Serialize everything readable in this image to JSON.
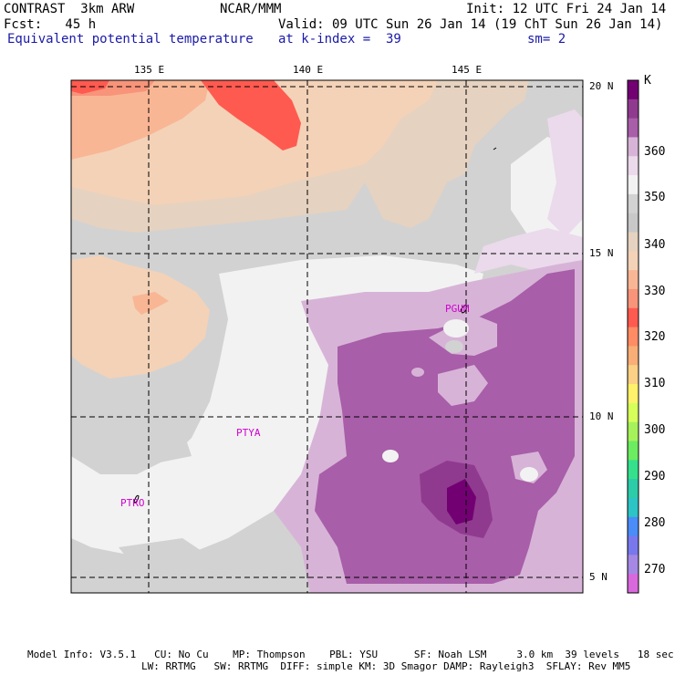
{
  "header": {
    "left_line1": "CONTRAST  3km ARW",
    "left_line2": "Fcst:   45 h",
    "field_title": "Equivalent potential temperature",
    "center_line1": "NCAR/MMM",
    "init": "Init: 12 UTC Fri 24 Jan 14",
    "valid": "Valid: 09 UTC Sun 26 Jan 14 (19 ChT Sun 26 Jan 14)",
    "level": "at k-index =  39",
    "smoothing": "sm= 2"
  },
  "axes": {
    "lon_labels": [
      "135 E",
      "140 E",
      "145 E"
    ],
    "lat_labels": [
      "20 N",
      "15 N",
      "10 N",
      "5 N"
    ]
  },
  "stations": [
    "PGUM",
    "PTYA",
    "PTRO"
  ],
  "colorbar": {
    "unit": "K",
    "labels": [
      "360",
      "350",
      "340",
      "330",
      "320",
      "310",
      "300",
      "290",
      "280",
      "270"
    ],
    "colors": [
      "#730073",
      "#8f3a8f",
      "#a85ea8",
      "#d7b4d7",
      "#ebdaeb",
      "#f2f2f2",
      "#d2d2d2",
      "#c8c8c8",
      "#e6d2c0",
      "#f3d2b8",
      "#f9b694",
      "#f7947a",
      "#ff5a50",
      "#ff8c64",
      "#f8ae76",
      "#fbd185",
      "#fff26a",
      "#d6ff5a",
      "#a6f25a",
      "#6cec60",
      "#34e08c",
      "#2ccca8",
      "#2cc4c4",
      "#4a8cf8",
      "#7878ec",
      "#a488e4",
      "#d868dc"
    ]
  },
  "footer": {
    "line1": "Model Info: V3.5.1   CU: No Cu    MP: Thompson    PBL: YSU      SF: Noah LSM     3.0 km  39 levels   18 sec",
    "line2": "LW: RRTMG   SW: RRTMG  DIFF: simple KM: 3D Smagor DAMP: Rayleigh3  SFLAY: Rev MM5"
  }
}
